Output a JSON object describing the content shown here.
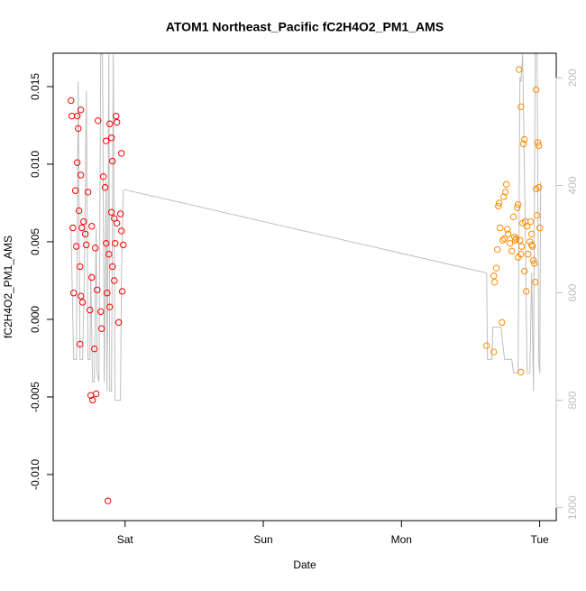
{
  "chart_data": {
    "type": "scatter",
    "title": "ATOM1 Northeast_Pacific fC2H4O2_PM1_AMS",
    "xlabel": "Date",
    "ylabel": "fC2H4O2_PM1_AMS",
    "xlim": [
      -0.52,
      3.12
    ],
    "xticks": [
      {
        "value": 0,
        "label": "Sat"
      },
      {
        "value": 1,
        "label": "Sun"
      },
      {
        "value": 2,
        "label": "Mon"
      },
      {
        "value": 3,
        "label": "Tue"
      }
    ],
    "ylim": [
      -0.01297,
      0.01715
    ],
    "yticks": [
      -0.005,
      {
        "value": -0.01,
        "label": "-0.010"
      },
      {
        "value": 0,
        "label": "0.000"
      },
      0.005,
      {
        "value": 0.01,
        "label": "0.010"
      },
      0.015
    ],
    "y2lim": [
      1024,
      154
    ],
    "y2ticks": [
      200,
      400,
      600,
      800,
      1000
    ],
    "y2color": "#bebebe",
    "series": [
      {
        "type": "scatter",
        "color": "#ff0000",
        "x": [
          -0.391,
          -0.385,
          -0.378,
          -0.372,
          -0.359,
          -0.352,
          -0.346,
          -0.346,
          -0.339,
          -0.333,
          -0.326,
          -0.326,
          -0.32,
          -0.32,
          -0.32,
          -0.313,
          -0.307,
          -0.3,
          -0.287,
          -0.28,
          -0.268,
          -0.254,
          -0.248,
          -0.235,
          -0.241,
          -0.241,
          -0.222,
          -0.215,
          -0.209,
          -0.202,
          -0.196,
          -0.176,
          -0.17,
          -0.157,
          -0.144,
          -0.137,
          -0.137,
          -0.13,
          -0.124,
          -0.117,
          -0.111,
          -0.111,
          -0.098,
          -0.098,
          -0.091,
          -0.091,
          -0.078,
          -0.078,
          -0.072,
          -0.065,
          -0.059,
          -0.059,
          -0.046,
          -0.033,
          -0.026,
          -0.026,
          -0.02,
          -0.013
        ],
        "values": [
          0.0141,
          0.0131,
          0.0059,
          0.0017,
          0.0083,
          0.0047,
          0.0131,
          0.0101,
          0.0123,
          0.007,
          0.0034,
          -0.0016,
          0.0015,
          0.0135,
          0.0093,
          0.0059,
          0.0011,
          0.0063,
          0.0055,
          0.0048,
          0.0082,
          0.0006,
          -0.0049,
          -0.0052,
          0.006,
          0.0027,
          -0.0019,
          0.0046,
          -0.0048,
          0.0019,
          0.0128,
          0.0005,
          -0.0006,
          0.0092,
          0.0085,
          0.0115,
          0.0049,
          0.0017,
          -0.0117,
          0.0042,
          0.0008,
          0.0126,
          0.0117,
          0.0069,
          0.0102,
          0.0034,
          0.0065,
          0.0025,
          0.0049,
          0.0131,
          0.0062,
          0.0127,
          -0.0002,
          0.0068,
          0.0057,
          0.0107,
          0.0018,
          0.0048
        ]
      },
      {
        "type": "scatter",
        "color": "#ff8c00",
        "x": [
          2.616,
          2.668,
          2.668,
          2.674,
          2.687,
          2.694,
          2.701,
          2.707,
          2.714,
          2.727,
          2.733,
          2.74,
          2.746,
          2.753,
          2.759,
          2.766,
          2.772,
          2.785,
          2.798,
          2.811,
          2.818,
          2.824,
          2.831,
          2.838,
          2.844,
          2.844,
          2.851,
          2.857,
          2.864,
          2.864,
          2.864,
          2.87,
          2.877,
          2.883,
          2.89,
          2.89,
          2.896,
          2.903,
          2.909,
          2.916,
          2.929,
          2.935,
          2.942,
          2.942,
          2.948,
          2.955,
          2.961,
          2.968,
          2.975,
          2.975,
          2.981,
          2.988,
          2.994,
          2.994,
          3.001
        ],
        "values": [
          -0.0017,
          -0.0021,
          0.0028,
          0.0024,
          0.0033,
          0.0045,
          0.0073,
          0.0075,
          0.0059,
          -0.0002,
          0.0051,
          0.0079,
          0.0052,
          0.0082,
          0.0087,
          0.0058,
          0.0055,
          0.0049,
          0.0044,
          0.0066,
          0.0053,
          0.0051,
          0.0052,
          0.0072,
          0.0074,
          0.004,
          0.0161,
          0.0051,
          0.0137,
          0.0042,
          -0.0034,
          0.0047,
          0.0062,
          0.0113,
          0.0116,
          0.0031,
          0.0063,
          0.0018,
          0.006,
          0.0042,
          0.005,
          0.0063,
          0.0055,
          0.0048,
          0.0047,
          0.0038,
          0.0036,
          0.0024,
          0.0148,
          0.0084,
          0.0067,
          0.0114,
          0.0112,
          0.0085,
          0.0059
        ]
      },
      {
        "type": "line",
        "axis": "y2",
        "color": "#bebebe",
        "x": [
          -0.391,
          -0.372,
          -0.352,
          -0.339,
          -0.326,
          -0.307,
          -0.294,
          -0.28,
          -0.268,
          -0.254,
          -0.248,
          -0.235,
          -0.222,
          -0.209,
          -0.202,
          -0.189,
          -0.176,
          -0.163,
          -0.15,
          -0.137,
          -0.13,
          -0.117,
          -0.111,
          -0.098,
          -0.085,
          -0.072,
          -0.033,
          -0.026,
          -0.013,
          0,
          2.616,
          2.622,
          2.655,
          2.661,
          2.72,
          2.746,
          2.798,
          2.811,
          2.844,
          2.857,
          2.864,
          2.877,
          2.896,
          2.909,
          2.929,
          2.942,
          2.955,
          2.968,
          2.981,
          2.994,
          3.001,
          3.007
        ],
        "values": [
          478,
          724,
          724,
          207,
          724,
          724,
          563,
          224,
          724,
          724,
          563,
          766,
          766,
          478,
          749,
          766,
          156,
          156,
          766,
          393,
          783,
          156,
          783,
          783,
          156,
          800,
          800,
          563,
          410,
          408,
          563,
          724,
          724,
          664,
          664,
          724,
          724,
          749,
          749,
          198,
          207,
          156,
          478,
          749,
          749,
          563,
          783,
          156,
          156,
          732,
          749,
          393
        ]
      }
    ]
  }
}
